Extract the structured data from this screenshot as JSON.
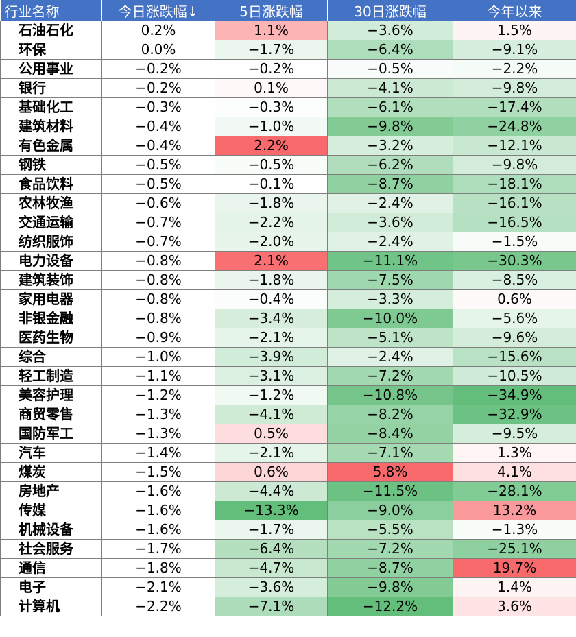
{
  "chart_data": {
    "type": "table",
    "columns": [
      "行业名称",
      "今日涨跌幅↓",
      "5日涨跌幅",
      "30日涨跌幅",
      "今年以来"
    ],
    "rows": [
      [
        "石油石化",
        "0.2%",
        "1.1%",
        "−3.6%",
        "1.5%"
      ],
      [
        "环保",
        "0.0%",
        "−1.7%",
        "−6.4%",
        "−9.1%"
      ],
      [
        "公用事业",
        "−0.2%",
        "−0.2%",
        "−0.5%",
        "−2.2%"
      ],
      [
        "银行",
        "−0.2%",
        "0.1%",
        "−4.1%",
        "−9.8%"
      ],
      [
        "基础化工",
        "−0.3%",
        "−0.3%",
        "−6.1%",
        "−17.4%"
      ],
      [
        "建筑材料",
        "−0.4%",
        "−1.0%",
        "−9.8%",
        "−24.8%"
      ],
      [
        "有色金属",
        "−0.4%",
        "2.2%",
        "−3.2%",
        "−12.1%"
      ],
      [
        "钢铁",
        "−0.5%",
        "−0.5%",
        "−6.2%",
        "−9.8%"
      ],
      [
        "食品饮料",
        "−0.5%",
        "−0.1%",
        "−8.7%",
        "−18.1%"
      ],
      [
        "农林牧渔",
        "−0.6%",
        "−1.8%",
        "−2.4%",
        "−16.1%"
      ],
      [
        "交通运输",
        "−0.7%",
        "−2.2%",
        "−3.6%",
        "−16.5%"
      ],
      [
        "纺织服饰",
        "−0.7%",
        "−2.0%",
        "−2.4%",
        "−1.5%"
      ],
      [
        "电力设备",
        "−0.8%",
        "2.1%",
        "−11.1%",
        "−30.3%"
      ],
      [
        "建筑装饰",
        "−0.8%",
        "−1.8%",
        "−7.5%",
        "−8.5%"
      ],
      [
        "家用电器",
        "−0.8%",
        "−0.4%",
        "−3.3%",
        "0.6%"
      ],
      [
        "非银金融",
        "−0.8%",
        "−3.4%",
        "−10.0%",
        "−5.6%"
      ],
      [
        "医药生物",
        "−0.9%",
        "−2.1%",
        "−5.1%",
        "−9.6%"
      ],
      [
        "综合",
        "−1.0%",
        "−3.9%",
        "−2.4%",
        "−15.6%"
      ],
      [
        "轻工制造",
        "−1.1%",
        "−3.1%",
        "−7.2%",
        "−10.5%"
      ],
      [
        "美容护理",
        "−1.2%",
        "−1.2%",
        "−10.8%",
        "−34.9%"
      ],
      [
        "商贸零售",
        "−1.3%",
        "−4.1%",
        "−8.2%",
        "−32.9%"
      ],
      [
        "国防军工",
        "−1.3%",
        "0.5%",
        "−8.4%",
        "−9.5%"
      ],
      [
        "汽车",
        "−1.4%",
        "−2.1%",
        "−7.1%",
        "1.3%"
      ],
      [
        "煤炭",
        "−1.5%",
        "0.6%",
        "5.8%",
        "4.1%"
      ],
      [
        "房地产",
        "−1.6%",
        "−4.4%",
        "−11.5%",
        "−28.1%"
      ],
      [
        "传媒",
        "−1.6%",
        "−13.3%",
        "−9.0%",
        "13.2%"
      ],
      [
        "机械设备",
        "−1.6%",
        "−1.7%",
        "−5.5%",
        "−1.3%"
      ],
      [
        "社会服务",
        "−1.7%",
        "−6.4%",
        "−7.2%",
        "−25.1%"
      ],
      [
        "通信",
        "−1.8%",
        "−4.7%",
        "−8.7%",
        "19.7%"
      ],
      [
        "电子",
        "−2.1%",
        "−3.6%",
        "−9.8%",
        "1.4%"
      ],
      [
        "计算机",
        "−2.2%",
        "−7.1%",
        "−12.2%",
        "3.6%"
      ]
    ],
    "colors": {
      "header_bg": "#4472c4",
      "positive": "#f8696b",
      "negative": "#63be7b",
      "neutral": "#ffffff"
    }
  }
}
